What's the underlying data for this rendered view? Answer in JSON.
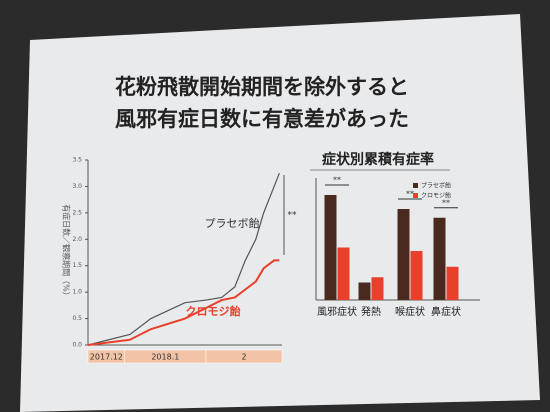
{
  "slide": {
    "title_lines": [
      "花粉飛散開始期間を除外すると",
      "風邪有症日数に有意差があった"
    ]
  },
  "chart_data": [
    {
      "type": "line",
      "y_label": "有症日数／観察期間（%）",
      "x": [
        0,
        16,
        24,
        37,
        45,
        51,
        56,
        60,
        64,
        67,
        71,
        73
      ],
      "xlim": [
        0,
        74
      ],
      "ylim": [
        0,
        3.5
      ],
      "yticks": [
        {
          "value": 0,
          "label": "0.0"
        },
        {
          "value": 0.5,
          "label": "0.5"
        },
        {
          "value": 1,
          "label": "1.0"
        },
        {
          "value": 1.5,
          "label": "1.5"
        },
        {
          "value": 2,
          "label": "2.0"
        },
        {
          "value": 2.5,
          "label": "2.5"
        },
        {
          "value": 3,
          "label": "3.0"
        },
        {
          "value": 3.5,
          "label": "3.5"
        }
      ],
      "periods": [
        {
          "label": "2017.12",
          "start": 0,
          "end": 14
        },
        {
          "label": "2018.1",
          "start": 14,
          "end": 45
        },
        {
          "label": "2",
          "start": 45,
          "end": 74
        }
      ],
      "series": [
        {
          "name": "プラセボ飴",
          "color": "#555555",
          "values": [
            0,
            0.2,
            0.5,
            0.8,
            0.85,
            0.9,
            1.1,
            1.6,
            2.0,
            2.5,
            3.0,
            3.25
          ]
        },
        {
          "name": "クロモジ飴",
          "color": "#e8402a",
          "values": [
            0,
            0.1,
            0.3,
            0.5,
            0.7,
            0.85,
            0.9,
            1.05,
            1.2,
            1.45,
            1.6,
            1.6
          ]
        }
      ],
      "annotation": "**"
    },
    {
      "type": "bar",
      "title": "症状別累積有症率",
      "categories": [
        "風邪症状",
        "発熱",
        "喉症状",
        "鼻症状"
      ],
      "ylim": [
        0,
        3.5
      ],
      "series": [
        {
          "name": "プラセボ飴",
          "color": "#4a2a1e",
          "values": [
            3.0,
            0.5,
            2.6,
            2.35
          ]
        },
        {
          "name": "クロモジ飴",
          "color": "#e8402a",
          "values": [
            1.5,
            0.65,
            1.4,
            0.95
          ]
        }
      ],
      "significance": [
        "**",
        null,
        "**",
        "**"
      ]
    }
  ]
}
